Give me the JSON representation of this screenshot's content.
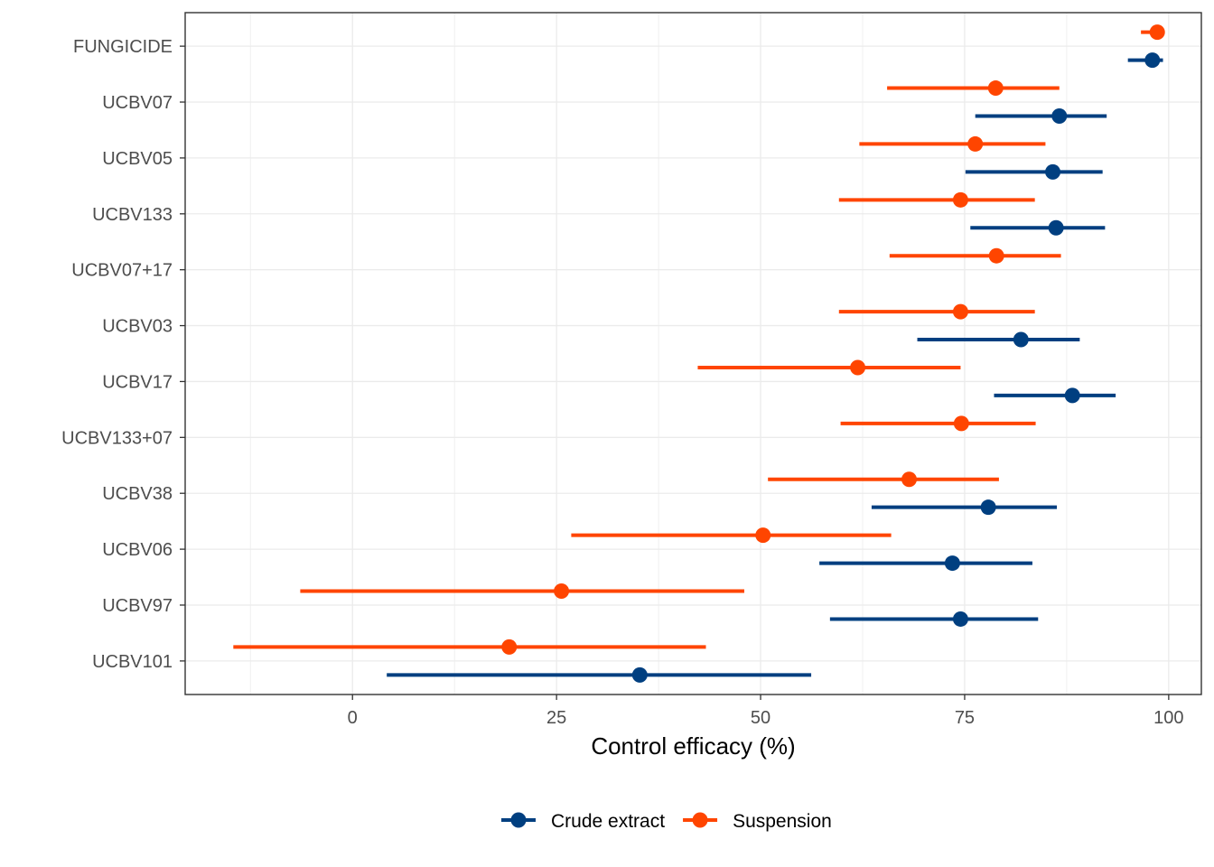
{
  "chart_data": {
    "type": "scatter",
    "subtype": "dot-and-errorbar (horizontal intervals)",
    "title": "",
    "xlabel": "Control efficacy (%)",
    "ylabel": "",
    "xlim": [
      -20.5,
      104
    ],
    "x_ticks": [
      0,
      25,
      50,
      75,
      100
    ],
    "x_tick_labels": [
      "0",
      "25",
      "50",
      "75",
      "100"
    ],
    "grid": true,
    "legend_position": "bottom",
    "categories": [
      "FUNGICIDE",
      "UCBV07",
      "UCBV05",
      "UCBV133",
      "UCBV07+17",
      "UCBV03",
      "UCBV17",
      "UCBV133+07",
      "UCBV38",
      "UCBV06",
      "UCBV97",
      "UCBV101"
    ],
    "series": [
      {
        "name": "Crude extract",
        "color": "#003f80",
        "points": [
          {
            "category": "FUNGICIDE",
            "value": 98,
            "lower": 95,
            "upper": 99.3
          },
          {
            "category": "UCBV07",
            "value": 86.6,
            "lower": 76.3,
            "upper": 92.4
          },
          {
            "category": "UCBV05",
            "value": 85.8,
            "lower": 75.1,
            "upper": 91.9
          },
          {
            "category": "UCBV133",
            "value": 86.2,
            "lower": 75.7,
            "upper": 92.2
          },
          {
            "category": "UCBV03",
            "value": 81.9,
            "lower": 69.2,
            "upper": 89.1
          },
          {
            "category": "UCBV17",
            "value": 88.2,
            "lower": 78.6,
            "upper": 93.5
          },
          {
            "category": "UCBV38",
            "value": 77.9,
            "lower": 63.6,
            "upper": 86.3
          },
          {
            "category": "UCBV06",
            "value": 73.5,
            "lower": 57.2,
            "upper": 83.3
          },
          {
            "category": "UCBV97",
            "value": 74.5,
            "lower": 58.5,
            "upper": 84.0
          },
          {
            "category": "UCBV101",
            "value": 35.2,
            "lower": 4.2,
            "upper": 56.2
          }
        ]
      },
      {
        "name": "Suspension",
        "color": "#ff4500",
        "points": [
          {
            "category": "FUNGICIDE",
            "value": 98.6,
            "lower": 96.6,
            "upper": 99.3
          },
          {
            "category": "UCBV07",
            "value": 78.8,
            "lower": 65.5,
            "upper": 86.6
          },
          {
            "category": "UCBV05",
            "value": 76.3,
            "lower": 62.1,
            "upper": 84.9
          },
          {
            "category": "UCBV133",
            "value": 74.5,
            "lower": 59.6,
            "upper": 83.6
          },
          {
            "category": "UCBV07+17",
            "value": 78.9,
            "lower": 65.8,
            "upper": 86.8
          },
          {
            "category": "UCBV03",
            "value": 74.5,
            "lower": 59.6,
            "upper": 83.6
          },
          {
            "category": "UCBV17",
            "value": 61.9,
            "lower": 42.3,
            "upper": 74.5
          },
          {
            "category": "UCBV133+07",
            "value": 74.6,
            "lower": 59.8,
            "upper": 83.7
          },
          {
            "category": "UCBV38",
            "value": 68.2,
            "lower": 50.9,
            "upper": 79.2
          },
          {
            "category": "UCBV06",
            "value": 50.3,
            "lower": 26.8,
            "upper": 66.0
          },
          {
            "category": "UCBV97",
            "value": 25.6,
            "lower": -6.4,
            "upper": 48.0
          },
          {
            "category": "UCBV101",
            "value": 19.2,
            "lower": -14.6,
            "upper": 43.3
          }
        ]
      }
    ]
  }
}
